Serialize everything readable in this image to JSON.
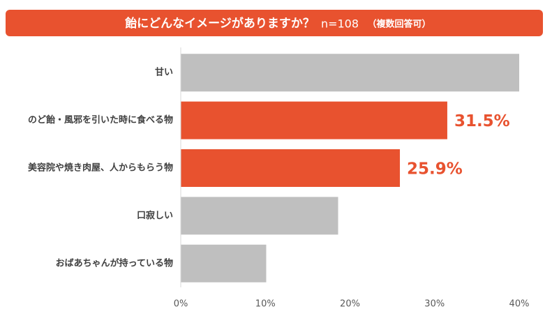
{
  "chart_data": {
    "type": "bar",
    "orientation": "horizontal",
    "title": "飴にどんなイメージがありますか？",
    "subtitle": "n=108",
    "note": "（複数回答可）",
    "title_color": "#e8522f",
    "categories": [
      "甘い",
      "のど飴・風邪を引いた時に食べる物",
      "美容院や焼き肉屋、人からもらう物",
      "口寂しい",
      "おばあちゃんが持っている物"
    ],
    "values": [
      40.0,
      31.5,
      25.9,
      18.6,
      10.1
    ],
    "value_labels": [
      null,
      "31.5%",
      "25.9%",
      null,
      null
    ],
    "colors": [
      "#bfbfbf",
      "#e8522f",
      "#e8522f",
      "#bfbfbf",
      "#bfbfbf"
    ],
    "xlim": [
      0,
      40
    ],
    "xticks": [
      {
        "value": 0,
        "label": "0%"
      },
      {
        "value": 10,
        "label": "10%"
      },
      {
        "value": 20,
        "label": "20%"
      },
      {
        "value": 30,
        "label": "30%"
      },
      {
        "value": 40,
        "label": "40%"
      }
    ],
    "grid": false
  }
}
